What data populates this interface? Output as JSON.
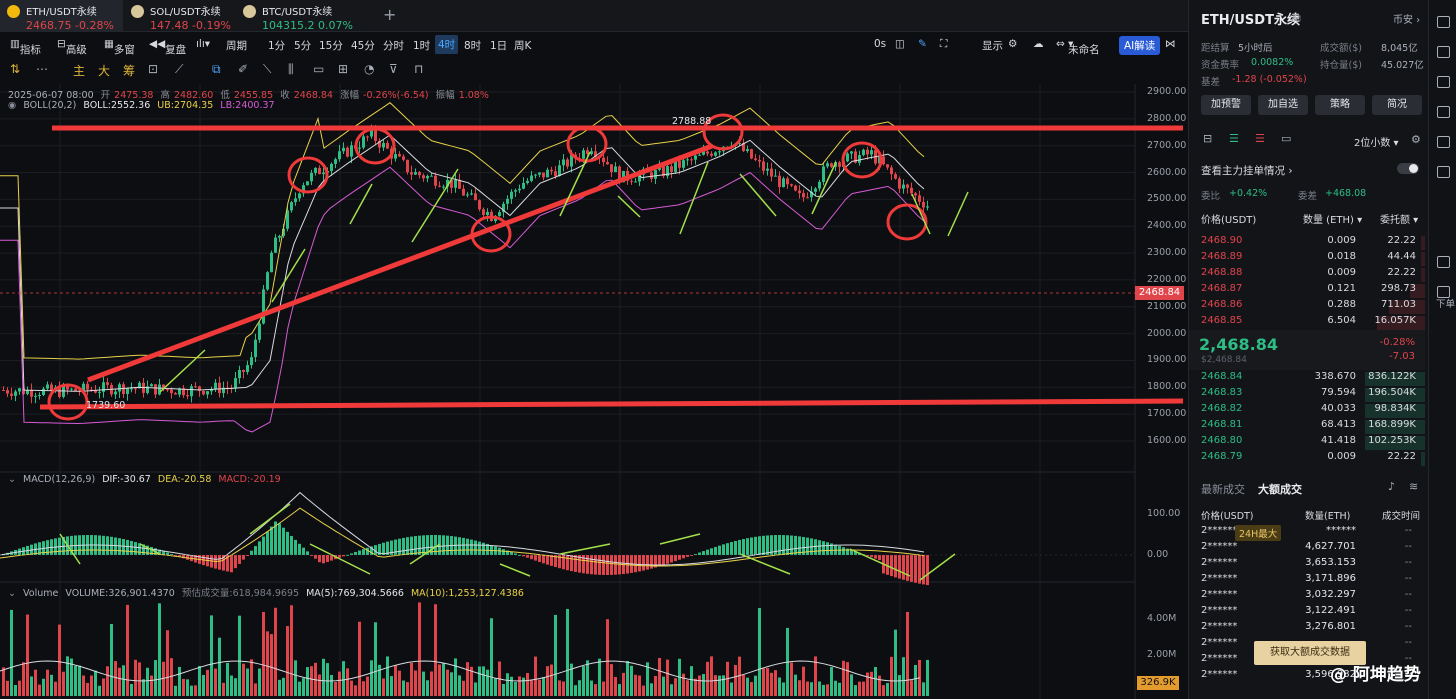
{
  "tabs": [
    {
      "name": "ETH/USDT永续",
      "price": "2468.75",
      "change": "-0.28%",
      "icon": "eth-coin-icon",
      "color": "#e0454b"
    },
    {
      "name": "SOL/USDT永续",
      "price": "147.48",
      "change": "-0.19%",
      "icon": "sol-coin-icon",
      "color": "#e0454b"
    },
    {
      "name": "BTC/USDT永续",
      "price": "104315.2",
      "change": "0.07%",
      "icon": "btc-coin-icon",
      "color": "#2ebd85"
    }
  ],
  "add_tab": "+",
  "toolbar": {
    "indicator": "指标",
    "advanced": "高级",
    "multi": "多窗",
    "replay": "复盘",
    "period": "周期",
    "periods": [
      "1分",
      "5分",
      "15分",
      "45分",
      "分时",
      "1时",
      "4时",
      "8时",
      "1日",
      "周K"
    ],
    "active_period": "4时",
    "countdown": "0s",
    "display": "显示",
    "layout": "未命名",
    "ai": "AI解读"
  },
  "drawtools": {
    "main": "主",
    "big": "大",
    "chips": "筹"
  },
  "legend": {
    "ohlc": {
      "date": "2025-06-07 08:00",
      "open_l": "开",
      "open": "2475.38",
      "high_l": "高",
      "high": "2482.60",
      "low_l": "低",
      "low": "2455.85",
      "close_l": "收",
      "close": "2468.84",
      "chg_l": "涨幅",
      "chg": "-0.26%(-6.54)",
      "amp_l": "振幅",
      "amp": "1.08%"
    },
    "boll": {
      "label": "BOLL(20,2)",
      "mid": "BOLL:2552.36",
      "ub": "UB:2704.35",
      "lb": "LB:2400.37"
    },
    "macd": {
      "label": "MACD(12,26,9)",
      "dif": "DIF:-30.67",
      "dea": "DEA:-20.58",
      "macd": "MACD:-20.19"
    },
    "volume": {
      "label": "Volume",
      "vol": "VOLUME:326,901.4370",
      "est": "预估成交量:618,984.9695",
      "ma5": "MA(5):769,304.5666",
      "ma10": "MA(10):1,253,127.4386"
    }
  },
  "price_axis": [
    "2900.00",
    "2800.00",
    "2700.00",
    "2600.00",
    "2500.00",
    "2400.00",
    "2300.00",
    "2200.00",
    "2100.00",
    "2000.00",
    "1900.00",
    "1800.00",
    "1700.00",
    "1600.00"
  ],
  "macd_axis": [
    "100.00",
    "0.00"
  ],
  "volume_axis": [
    "4.00M",
    "2.00M"
  ],
  "current_price_tag": "2468.84",
  "volume_tag": "326.9K",
  "high_label": "2788.88",
  "low_label": "1739.60",
  "panel": {
    "symbol": "ETH/USDT永续",
    "spot": "币安",
    "settle_l": "距结算",
    "settle": "5小时后",
    "turnover_l": "成交额($)",
    "turnover": "8,045亿",
    "funding_l": "资金费率",
    "funding": "0.0082%",
    "oi_l": "持仓量($)",
    "oi": "45.027亿",
    "basis_l": "基差",
    "basis": "-1.28 (-0.052%)",
    "buttons": [
      "加预警",
      "加自选",
      "策略",
      "简况"
    ],
    "decimals": "2位小数",
    "big_orders": "查看主力挂单情况",
    "commit_l": "委比",
    "commit": "+0.42%",
    "diff_l": "委差",
    "diff": "+468.08",
    "ob_headers": [
      "价格(USDT)",
      "数量 (ETH)",
      "委托额"
    ],
    "asks": [
      [
        "2468.90",
        "0.009",
        "22.22"
      ],
      [
        "2468.89",
        "0.018",
        "44.44"
      ],
      [
        "2468.88",
        "0.009",
        "22.22"
      ],
      [
        "2468.87",
        "0.121",
        "298.73"
      ],
      [
        "2468.86",
        "0.288",
        "711.03"
      ],
      [
        "2468.85",
        "6.504",
        "16.057K"
      ]
    ],
    "last": "2,468.84",
    "last_usd": "$2,468.84",
    "last_pct": "-0.28%",
    "last_chg": "-7.03",
    "bids": [
      [
        "2468.84",
        "338.670",
        "836.122K"
      ],
      [
        "2468.83",
        "79.594",
        "196.504K"
      ],
      [
        "2468.82",
        "40.033",
        "98.834K"
      ],
      [
        "2468.81",
        "68.413",
        "168.899K"
      ],
      [
        "2468.80",
        "41.418",
        "102.253K"
      ],
      [
        "2468.79",
        "0.009",
        "22.22"
      ]
    ],
    "trade_tabs": [
      "最新成交",
      "大额成交"
    ],
    "trade_headers": [
      "价格(USDT)",
      "数量(ETH)",
      "成交时间"
    ],
    "trades": [
      [
        "2******",
        "******",
        "--"
      ],
      [
        "2******",
        "4,627.701",
        "--"
      ],
      [
        "2******",
        "3,653.153",
        "--"
      ],
      [
        "2******",
        "3,171.896",
        "--"
      ],
      [
        "2******",
        "3,032.297",
        "--"
      ],
      [
        "2******",
        "3,122.491",
        "--"
      ],
      [
        "2******",
        "3,276.801",
        "--"
      ],
      [
        "2******",
        "",
        "--"
      ],
      [
        "2******",
        "",
        "--"
      ],
      [
        "2******",
        "3,596.982",
        "--"
      ]
    ],
    "badge": "24H最大",
    "get_btn": "获取大额成交数据"
  },
  "rail_icons": [
    "layout-icon",
    "list-icon",
    "orderbook-icon",
    "chart-icon",
    "doc-icon",
    "bank-icon",
    "calc-icon",
    "order-icon"
  ],
  "rail_label": "下单",
  "watermark": "@ 阿坤趋势"
}
